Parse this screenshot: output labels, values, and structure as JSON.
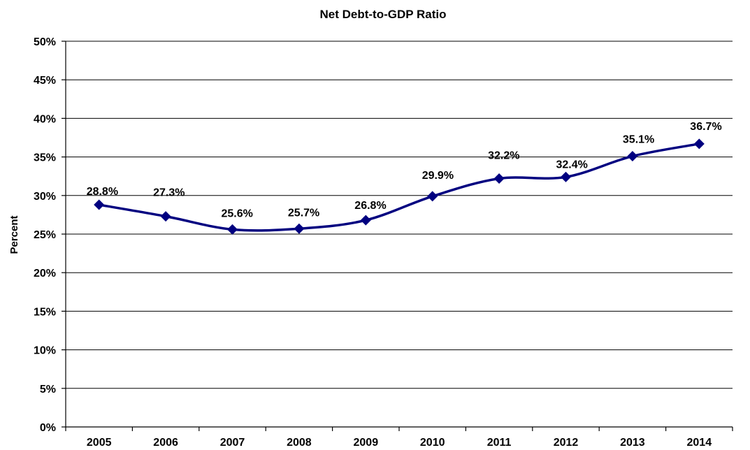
{
  "chart_data": {
    "type": "line",
    "title": "Net Debt-to-GDP Ratio",
    "xlabel": "",
    "ylabel": "Percent",
    "categories": [
      "2005",
      "2006",
      "2007",
      "2008",
      "2009",
      "2010",
      "2011",
      "2012",
      "2013",
      "2014"
    ],
    "series": [
      {
        "values": [
          28.8,
          27.3,
          25.6,
          25.7,
          26.8,
          29.9,
          32.2,
          32.4,
          35.1,
          36.7
        ],
        "labels": [
          "28.8%",
          "27.3%",
          "25.6%",
          "25.7%",
          "26.8%",
          "29.9%",
          "32.2%",
          "32.4%",
          "35.1%",
          "36.7%"
        ],
        "color": "#000080",
        "marker": "diamond",
        "smoothed": true
      }
    ],
    "ylim": [
      0,
      50
    ],
    "yticks": [
      "0%",
      "5%",
      "10%",
      "15%",
      "20%",
      "25%",
      "30%",
      "35%",
      "40%",
      "45%",
      "50%"
    ],
    "grid": true,
    "legend": "none"
  }
}
